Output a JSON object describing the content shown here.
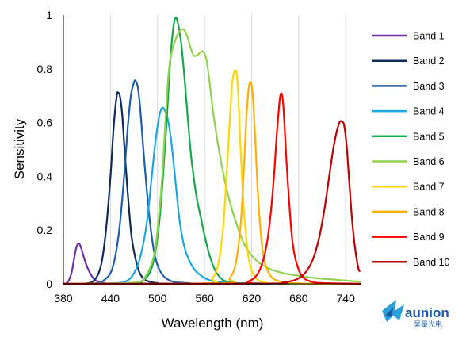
{
  "chart_data": {
    "type": "line",
    "title": "",
    "xlabel": "Wavelength (nm)",
    "ylabel": "Sensitivity",
    "xlim": [
      380,
      760
    ],
    "ylim": [
      0,
      1
    ],
    "xticks": [
      380,
      440,
      500,
      560,
      620,
      680,
      740
    ],
    "yticks": [
      0,
      0.2,
      0.4,
      0.6,
      0.8,
      1
    ],
    "ytick_labels": [
      "0",
      "0.2",
      "0.4",
      "0.6",
      "0.8",
      "1"
    ],
    "grid": "vertical",
    "legend_position": "right",
    "series": [
      {
        "name": "Band 1",
        "color": "#7030a0",
        "x": [
          380,
          385,
          388,
          391,
          394,
          397,
          400,
          403,
          406,
          410,
          415,
          420,
          425,
          430,
          435,
          440,
          450,
          470,
          500,
          560,
          620,
          700,
          760
        ],
        "y": [
          0,
          0.005,
          0.02,
          0.05,
          0.1,
          0.14,
          0.15,
          0.13,
          0.1,
          0.065,
          0.035,
          0.015,
          0.008,
          0.004,
          0.002,
          0.001,
          0.001,
          0.001,
          0.001,
          0.001,
          0.001,
          0.001,
          0.001
        ]
      },
      {
        "name": "Band 2",
        "color": "#0d2a5c",
        "x": [
          380,
          400,
          410,
          418,
          425,
          430,
          435,
          440,
          444,
          448,
          450,
          452,
          455,
          458,
          462,
          466,
          470,
          476,
          482,
          490,
          500,
          520,
          760
        ],
        "y": [
          0,
          0,
          0.002,
          0.01,
          0.04,
          0.1,
          0.22,
          0.4,
          0.58,
          0.7,
          0.71,
          0.7,
          0.63,
          0.5,
          0.34,
          0.2,
          0.12,
          0.05,
          0.02,
          0.008,
          0.003,
          0.001,
          0
        ]
      },
      {
        "name": "Band 3",
        "color": "#1f5fa8",
        "x": [
          380,
          420,
          430,
          440,
          446,
          452,
          458,
          462,
          466,
          470,
          472,
          475,
          478,
          482,
          486,
          490,
          495,
          500,
          506,
          514,
          524,
          540,
          560,
          760
        ],
        "y": [
          0,
          0.002,
          0.01,
          0.04,
          0.1,
          0.22,
          0.42,
          0.58,
          0.7,
          0.75,
          0.755,
          0.73,
          0.65,
          0.5,
          0.36,
          0.24,
          0.13,
          0.07,
          0.035,
          0.015,
          0.006,
          0.003,
          0.001,
          0
        ]
      },
      {
        "name": "Band 4",
        "color": "#1aa7e0",
        "x": [
          380,
          440,
          460,
          470,
          478,
          486,
          492,
          497,
          502,
          506,
          510,
          514,
          518,
          523,
          528,
          534,
          540,
          548,
          556,
          565,
          575,
          590,
          620,
          760
        ],
        "y": [
          0,
          0.002,
          0.01,
          0.04,
          0.1,
          0.22,
          0.38,
          0.52,
          0.62,
          0.655,
          0.64,
          0.6,
          0.52,
          0.38,
          0.24,
          0.14,
          0.09,
          0.05,
          0.03,
          0.015,
          0.008,
          0.004,
          0.002,
          0
        ]
      },
      {
        "name": "Band 5",
        "color": "#13a84a",
        "x": [
          380,
          470,
          480,
          490,
          496,
          502,
          507,
          512,
          516,
          520,
          523,
          526,
          530,
          534,
          538,
          542,
          546,
          550,
          555,
          560,
          566,
          572,
          578,
          585,
          595,
          610,
          760
        ],
        "y": [
          0,
          0.002,
          0.01,
          0.04,
          0.1,
          0.22,
          0.4,
          0.62,
          0.82,
          0.95,
          0.99,
          0.97,
          0.9,
          0.78,
          0.64,
          0.5,
          0.4,
          0.32,
          0.25,
          0.18,
          0.11,
          0.06,
          0.03,
          0.012,
          0.005,
          0.002,
          0
        ]
      },
      {
        "name": "Band 6",
        "color": "#92d050",
        "x": [
          380,
          470,
          485,
          495,
          500,
          506,
          510,
          514,
          518,
          522,
          526,
          530,
          534,
          538,
          542,
          546,
          550,
          554,
          558,
          562,
          566,
          570,
          576,
          582,
          590,
          600,
          612,
          625,
          640,
          660,
          680,
          700,
          720,
          740,
          760
        ],
        "y": [
          0,
          0.005,
          0.03,
          0.1,
          0.2,
          0.4,
          0.6,
          0.78,
          0.86,
          0.9,
          0.93,
          0.945,
          0.945,
          0.92,
          0.88,
          0.85,
          0.85,
          0.86,
          0.865,
          0.84,
          0.76,
          0.66,
          0.54,
          0.44,
          0.33,
          0.23,
          0.14,
          0.09,
          0.06,
          0.04,
          0.03,
          0.022,
          0.017,
          0.012,
          0.008
        ]
      },
      {
        "name": "Band 7",
        "color": "#ffd700",
        "x": [
          380,
          560,
          570,
          578,
          584,
          588,
          592,
          595,
          597,
          599,
          601,
          603,
          606,
          610,
          615,
          620,
          628,
          640,
          660,
          760
        ],
        "y": [
          0,
          0.002,
          0.02,
          0.08,
          0.22,
          0.4,
          0.6,
          0.74,
          0.78,
          0.795,
          0.78,
          0.7,
          0.5,
          0.28,
          0.12,
          0.05,
          0.015,
          0.004,
          0.001,
          0
        ]
      },
      {
        "name": "Band 8",
        "color": "#ffb000",
        "x": [
          380,
          580,
          592,
          600,
          606,
          610,
          613,
          616,
          618,
          620,
          622,
          625,
          628,
          632,
          636,
          642,
          650,
          665,
          690,
          760
        ],
        "y": [
          0,
          0.002,
          0.02,
          0.08,
          0.22,
          0.42,
          0.6,
          0.72,
          0.75,
          0.74,
          0.68,
          0.52,
          0.34,
          0.18,
          0.09,
          0.04,
          0.015,
          0.004,
          0.001,
          0
        ]
      },
      {
        "name": "Band 9",
        "color": "#ff0000",
        "x": [
          380,
          600,
          615,
          626,
          634,
          640,
          645,
          649,
          652,
          655,
          657,
          659,
          661,
          664,
          668,
          672,
          677,
          684,
          694,
          710,
          760
        ],
        "y": [
          0,
          0.001,
          0.008,
          0.03,
          0.08,
          0.16,
          0.28,
          0.42,
          0.55,
          0.66,
          0.705,
          0.7,
          0.64,
          0.48,
          0.3,
          0.16,
          0.08,
          0.03,
          0.01,
          0.003,
          0
        ]
      },
      {
        "name": "Band 10",
        "color": "#c00000",
        "x": [
          380,
          640,
          660,
          676,
          688,
          698,
          706,
          713,
          719,
          724,
          728,
          732,
          735,
          738,
          741,
          744,
          747,
          750,
          753,
          756,
          758
        ],
        "y": [
          0,
          0.001,
          0.005,
          0.015,
          0.04,
          0.09,
          0.17,
          0.28,
          0.4,
          0.5,
          0.56,
          0.6,
          0.605,
          0.59,
          0.52,
          0.4,
          0.28,
          0.18,
          0.11,
          0.06,
          0.045
        ]
      }
    ]
  },
  "watermark": {
    "brand": "aunion",
    "sub": "昊量光电"
  }
}
